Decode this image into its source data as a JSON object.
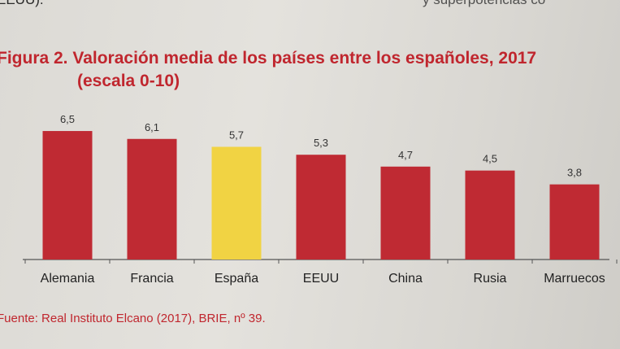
{
  "header": {
    "top_left_text": "EEUU).",
    "top_right_text": "y superpotencias co"
  },
  "figure": {
    "title_line1": "Figura 2. Valoración media de los países entre los españoles, 2017",
    "title_line2": "(escala 0-10)",
    "source": "Fuente: Real Instituto Elcano (2017), BRIE, nº 39."
  },
  "chart_data": {
    "type": "bar",
    "title": "Figura 2. Valoración media de los países entre los españoles, 2017",
    "subtitle": "(escala 0-10)",
    "xlabel": "",
    "ylabel": "",
    "categories": [
      "Alemania",
      "Francia",
      "España",
      "EEUU",
      "China",
      "Rusia",
      "Marruecos"
    ],
    "values": [
      6.5,
      6.1,
      5.7,
      5.3,
      4.7,
      4.5,
      3.8
    ],
    "value_labels": [
      "6,5",
      "6,1",
      "5,7",
      "5,3",
      "4,7",
      "4,5",
      "3,8"
    ],
    "ylim": [
      0,
      10
    ],
    "grid": false,
    "legend": "none",
    "colors": {
      "default_bar": "#bf2a33",
      "highlight_bar": "#f1d343",
      "highlight_category": "España",
      "value_label": "#333333",
      "axis": "#555555",
      "category_label": "#222222"
    }
  }
}
